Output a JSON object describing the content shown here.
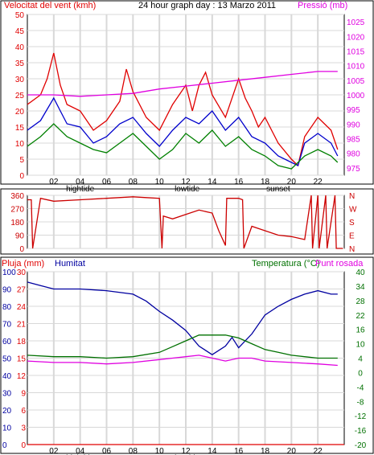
{
  "header": {
    "left_title": "Velocitat del vent (kmh)",
    "center_title": "24 hour graph day : 13 Marzo 2011",
    "right_title": "Pressió (mb)"
  },
  "colors": {
    "wind_gust": "#e00000",
    "wind_avg": "#0000cc",
    "wind_low": "#008000",
    "pressure": "#e000e0",
    "direction": "#cc0000",
    "rain": "#e00000",
    "humidity": "#0000a0",
    "temperature": "#007000",
    "dew_point": "#e000e0",
    "grid": "#d8d8d8",
    "frame": "#000000"
  },
  "x_axis": {
    "ticks": [
      "02",
      "04",
      "06",
      "08",
      "10",
      "12",
      "14",
      "16",
      "18",
      "20",
      "22",
      ""
    ],
    "events": [
      "hightide",
      "lowtide",
      "sunset"
    ]
  },
  "chart_data": [
    {
      "type": "line",
      "title": "",
      "x_range": [
        0,
        24
      ],
      "ylabel_left": "Velocitat del vent (kmh)",
      "yticks_left": [
        0,
        5,
        10,
        15,
        20,
        25,
        30,
        35,
        40,
        45,
        50
      ],
      "ylim_left": [
        0,
        50
      ],
      "ylabel_right": "Pressió (mb)",
      "yticks_right": [
        975,
        980,
        985,
        990,
        995,
        1000,
        1005,
        1010,
        1015,
        1020,
        1025
      ],
      "ylim_right": [
        972.5,
        1027.5
      ],
      "series": [
        {
          "key": "gust",
          "axis": "left",
          "x": [
            0,
            1,
            1.5,
            2,
            2.5,
            3,
            4,
            5,
            6,
            7,
            7.5,
            8,
            9,
            10,
            11,
            12,
            12.5,
            13,
            13.5,
            14,
            15,
            16,
            16.5,
            17,
            17.5,
            18,
            19,
            20,
            20.5,
            21,
            22,
            23,
            23.5
          ],
          "values": [
            22,
            25,
            30,
            38,
            28,
            22,
            20,
            14,
            17,
            23,
            33,
            26,
            18,
            14,
            22,
            28,
            20,
            28,
            32,
            25,
            18,
            30,
            24,
            20,
            15,
            18,
            10,
            5,
            3,
            12,
            18,
            14,
            8
          ]
        },
        {
          "key": "avg",
          "axis": "left",
          "x": [
            0,
            1,
            2,
            2.5,
            3,
            4,
            5,
            6,
            7,
            8,
            9,
            10,
            11,
            12,
            13,
            14,
            15,
            16,
            17,
            18,
            19,
            20,
            20.5,
            21,
            22,
            23,
            23.5
          ],
          "values": [
            14,
            17,
            24,
            20,
            16,
            15,
            10,
            12,
            16,
            18,
            13,
            9,
            14,
            18,
            16,
            20,
            14,
            18,
            12,
            10,
            6,
            4,
            3,
            10,
            13,
            10,
            6
          ]
        },
        {
          "key": "low",
          "axis": "left",
          "x": [
            0,
            1,
            2,
            3,
            4,
            5,
            6,
            7,
            8,
            9,
            10,
            11,
            12,
            13,
            14,
            15,
            16,
            17,
            18,
            19,
            20,
            21,
            22,
            23,
            23.5
          ],
          "values": [
            9,
            12,
            16,
            12,
            10,
            8,
            7,
            10,
            13,
            9,
            5,
            8,
            13,
            10,
            14,
            9,
            12,
            8,
            6,
            3,
            2,
            6,
            8,
            6,
            4
          ]
        },
        {
          "key": "pressure",
          "axis": "right",
          "x": [
            0,
            2,
            4,
            6,
            8,
            10,
            12,
            14,
            16,
            18,
            20,
            22,
            23.5
          ],
          "values": [
            1000,
            1000,
            999.5,
            1000,
            1000.5,
            1002,
            1003,
            1004,
            1005,
            1006,
            1007,
            1008,
            1008
          ]
        }
      ]
    },
    {
      "type": "line",
      "title": "",
      "x_range": [
        0,
        24
      ],
      "yticks_left": [
        0,
        90,
        180,
        270,
        360
      ],
      "ylim_left": [
        0,
        360
      ],
      "compass_right": [
        "N",
        "W",
        "S",
        "E",
        "N"
      ],
      "series": [
        {
          "key": "direction",
          "axis": "left",
          "x": [
            0,
            0.3,
            0.4,
            1,
            2,
            4,
            6,
            8,
            9,
            10,
            10.2,
            10.3,
            11,
            12,
            13,
            14,
            14.5,
            15,
            15.1,
            16,
            16.3,
            16.4,
            17,
            18,
            19,
            20,
            21,
            21.5,
            21.6,
            22,
            22.1,
            22.6,
            22.7,
            23.3,
            23.4,
            23.9
          ],
          "values": [
            330,
            330,
            0,
            340,
            320,
            330,
            340,
            350,
            345,
            340,
            0,
            220,
            200,
            230,
            260,
            240,
            120,
            20,
            340,
            340,
            330,
            0,
            150,
            120,
            90,
            80,
            60,
            360,
            0,
            360,
            0,
            360,
            0,
            360,
            0,
            0
          ]
        }
      ]
    },
    {
      "type": "line",
      "title": "",
      "x_range": [
        0,
        24
      ],
      "ylabel_left": "Pluja (mm)",
      "yticks_left": [
        0,
        10,
        20,
        30,
        40,
        50,
        60,
        70,
        80,
        90,
        100
      ],
      "ylim_left": [
        0,
        100
      ],
      "ylabel_humidity": "Humitat",
      "yticks_humidity": [
        0,
        3,
        6,
        9,
        12,
        15,
        18,
        21,
        24,
        27,
        30
      ],
      "ylabel_right": "Temperatura (°C)",
      "ylabel_right_2": "Punt rosada",
      "yticks_right": [
        -20,
        -16,
        -12,
        -8,
        -4,
        0,
        4,
        10,
        16,
        22,
        28,
        34,
        40
      ],
      "ylim_right": [
        -20,
        40
      ],
      "series": [
        {
          "key": "humidity",
          "axis": "left",
          "x": [
            0,
            1,
            2,
            4,
            6,
            8,
            9,
            10,
            11,
            12,
            13,
            14,
            15,
            15.5,
            16,
            17,
            18,
            19,
            20,
            21,
            22,
            23,
            23.5
          ],
          "values": [
            94,
            92,
            90,
            90,
            89,
            87,
            83,
            77,
            72,
            66,
            57,
            52,
            57,
            62,
            56,
            64,
            75,
            80,
            84,
            87,
            89,
            87,
            87
          ]
        },
        {
          "key": "temperature",
          "axis": "right",
          "x": [
            0,
            2,
            4,
            6,
            8,
            10,
            11,
            12,
            13,
            14,
            15,
            16,
            17,
            18,
            19,
            20,
            22,
            23.5
          ],
          "values": [
            11,
            10.5,
            10.5,
            10,
            10.5,
            12,
            14,
            16,
            18,
            18,
            18,
            17,
            15,
            13,
            12,
            11,
            10,
            10
          ]
        },
        {
          "key": "dew_point",
          "axis": "right",
          "x": [
            0,
            2,
            4,
            6,
            8,
            10,
            11,
            12,
            13,
            14,
            15,
            16,
            17,
            18,
            20,
            22,
            23.5
          ],
          "values": [
            9,
            8.5,
            8.5,
            8,
            8.5,
            9.5,
            10,
            10.5,
            11,
            10,
            9,
            10,
            10,
            9,
            8.5,
            8,
            7.5
          ]
        },
        {
          "key": "rain",
          "axis": "left",
          "x": [
            0,
            24
          ],
          "values": [
            0,
            0
          ]
        }
      ]
    }
  ]
}
